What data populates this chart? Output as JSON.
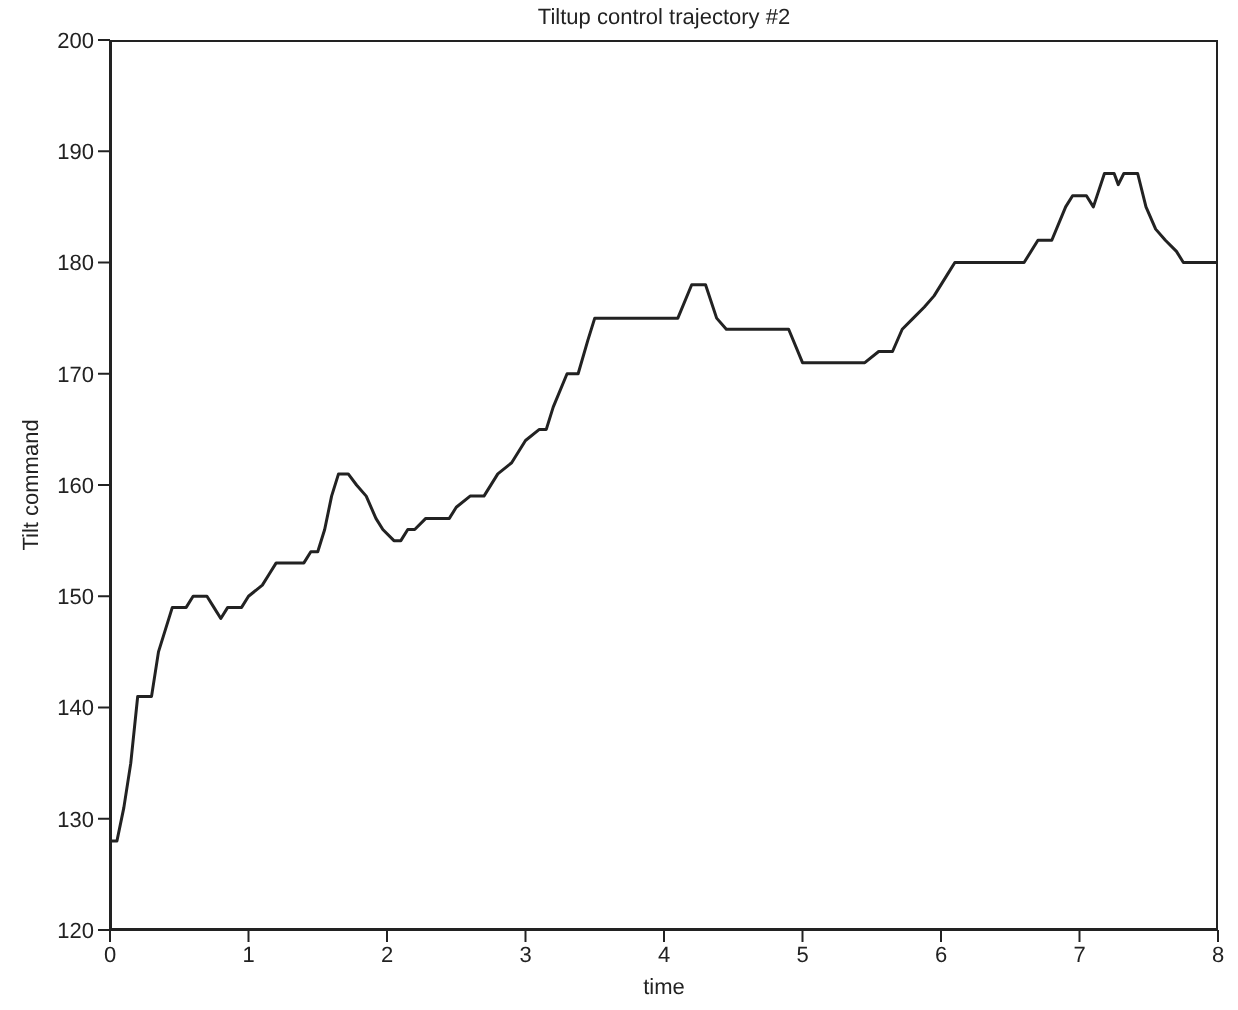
{
  "chart_data": {
    "type": "line",
    "title": "Tiltup control trajectory #2",
    "xlabel": "time",
    "ylabel": "Tilt command",
    "xlim": [
      0,
      8
    ],
    "xticks": [
      0,
      1,
      2,
      3,
      4,
      5,
      6,
      7,
      8
    ],
    "ylim": [
      120,
      200
    ],
    "yticks": [
      120,
      130,
      140,
      150,
      160,
      170,
      180,
      190,
      200
    ],
    "grid": false,
    "legend": false,
    "marker": "none",
    "line_style": "solid",
    "series": [
      {
        "color": "#222222",
        "x": [
          0,
          0.05,
          0.1,
          0.15,
          0.2,
          0.3,
          0.35,
          0.45,
          0.55,
          0.6,
          0.7,
          0.75,
          0.8,
          0.85,
          0.95,
          1.0,
          1.1,
          1.15,
          1.2,
          1.4,
          1.45,
          1.5,
          1.55,
          1.6,
          1.65,
          1.72,
          1.78,
          1.85,
          1.92,
          1.97,
          2.05,
          2.1,
          2.15,
          2.2,
          2.28,
          2.45,
          2.5,
          2.6,
          2.7,
          2.8,
          2.9,
          3.0,
          3.1,
          3.15,
          3.2,
          3.3,
          3.38,
          3.45,
          3.5,
          4.1,
          4.2,
          4.3,
          4.38,
          4.45,
          4.9,
          5.0,
          5.45,
          5.55,
          5.65,
          5.72,
          5.8,
          5.88,
          5.95,
          6.05,
          6.1,
          6.6,
          6.7,
          6.8,
          6.9,
          6.95,
          7.05,
          7.1,
          7.18,
          7.25,
          7.28,
          7.32,
          7.42,
          7.48,
          7.55,
          7.62,
          7.7,
          7.75,
          8.0
        ],
        "values": [
          128,
          128,
          131,
          135,
          141,
          141,
          145,
          149,
          149,
          150,
          150,
          149,
          148,
          149,
          149,
          150,
          151,
          152,
          153,
          153,
          154,
          154,
          156,
          159,
          161,
          161,
          160,
          159,
          157,
          156,
          155,
          155,
          156,
          156,
          157,
          157,
          158,
          159,
          159,
          161,
          162,
          164,
          165,
          165,
          167,
          170,
          170,
          173,
          175,
          175,
          178,
          178,
          175,
          174,
          174,
          171,
          171,
          172,
          172,
          174,
          175,
          176,
          177,
          179,
          180,
          180,
          182,
          182,
          185,
          186,
          186,
          185,
          188,
          188,
          187,
          188,
          188,
          185,
          183,
          182,
          181,
          180,
          180
        ]
      }
    ]
  }
}
